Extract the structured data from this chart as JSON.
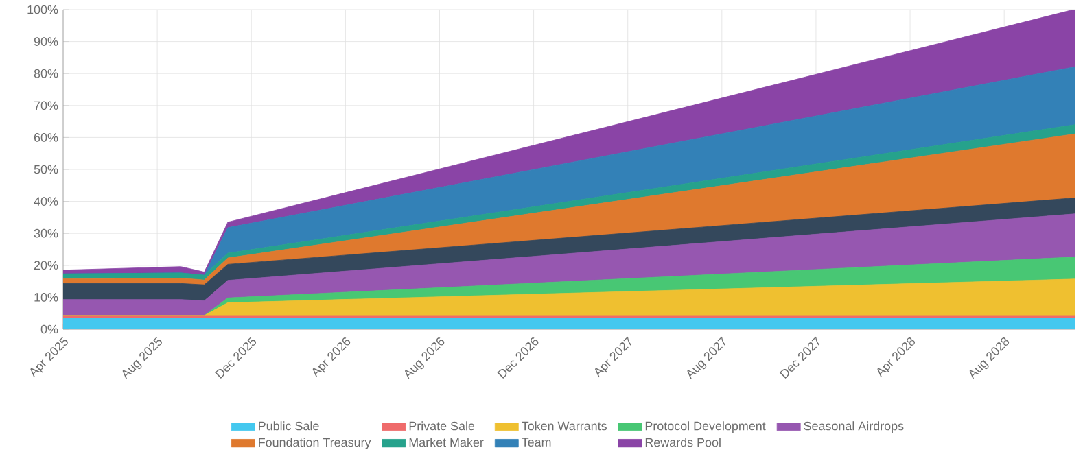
{
  "chart_data": {
    "type": "area",
    "stacked": true,
    "grid": true,
    "legend": "bottom",
    "x": [
      "2025-04",
      "2025-09",
      "2025-10",
      "2025-11",
      "2028-11"
    ],
    "xlim": [
      "2025-04",
      "2028-11"
    ],
    "xticks": [
      {
        "value": "2025-04",
        "label": "Apr 2025"
      },
      {
        "value": "2025-08",
        "label": "Aug 2025"
      },
      {
        "value": "2025-12",
        "label": "Dec 2025"
      },
      {
        "value": "2026-04",
        "label": "Apr 2026"
      },
      {
        "value": "2026-08",
        "label": "Aug 2026"
      },
      {
        "value": "2026-12",
        "label": "Dec 2026"
      },
      {
        "value": "2027-04",
        "label": "Apr 2027"
      },
      {
        "value": "2027-08",
        "label": "Aug 2027"
      },
      {
        "value": "2027-12",
        "label": "Dec 2027"
      },
      {
        "value": "2028-04",
        "label": "Apr 2028"
      },
      {
        "value": "2028-08",
        "label": "Aug 2028"
      }
    ],
    "ylim": [
      0,
      100
    ],
    "yticks": [
      {
        "value": 0,
        "label": "0%"
      },
      {
        "value": 10,
        "label": "10%"
      },
      {
        "value": 20,
        "label": "20%"
      },
      {
        "value": 30,
        "label": "30%"
      },
      {
        "value": 40,
        "label": "40%"
      },
      {
        "value": 50,
        "label": "50%"
      },
      {
        "value": 60,
        "label": "60%"
      },
      {
        "value": 70,
        "label": "70%"
      },
      {
        "value": 80,
        "label": "80%"
      },
      {
        "value": 90,
        "label": "90%"
      },
      {
        "value": 100,
        "label": "100%"
      }
    ],
    "series": [
      {
        "name": "Public Sale",
        "color": "#44c8ef",
        "values": [
          3.5,
          3.5,
          3.5,
          3.5,
          3.5
        ]
      },
      {
        "name": "Private Sale",
        "color": "#ef6b6b",
        "values": [
          0.8,
          0.8,
          0.8,
          0.8,
          0.8
        ]
      },
      {
        "name": "Token Warrants",
        "color": "#efc030",
        "values": [
          0,
          0,
          0,
          4,
          11.4
        ]
      },
      {
        "name": "Protocol Development",
        "color": "#48c774",
        "values": [
          0,
          0,
          0,
          1.5,
          6.9
        ]
      },
      {
        "name": "Seasonal Airdrops",
        "color": "#9657b0",
        "values": [
          5,
          5,
          4.6,
          5.5,
          13.5
        ]
      },
      {
        "color": "#34485c",
        "values": [
          5,
          5,
          5,
          5,
          5
        ]
      },
      {
        "name": "Foundation Treasury",
        "color": "#df792e",
        "values": [
          1.5,
          1.7,
          1.5,
          2,
          20
        ]
      },
      {
        "name": "Market Maker",
        "color": "#26a28c",
        "values": [
          1.5,
          1.6,
          1.5,
          1.5,
          2.9
        ]
      },
      {
        "name": "Team",
        "color": "#3381b7",
        "values": [
          0,
          0,
          0,
          8,
          18.1
        ]
      },
      {
        "name": "Rewards Pool",
        "color": "#8a44a6",
        "values": [
          1.2,
          2,
          1,
          1.7,
          18
        ]
      }
    ]
  }
}
